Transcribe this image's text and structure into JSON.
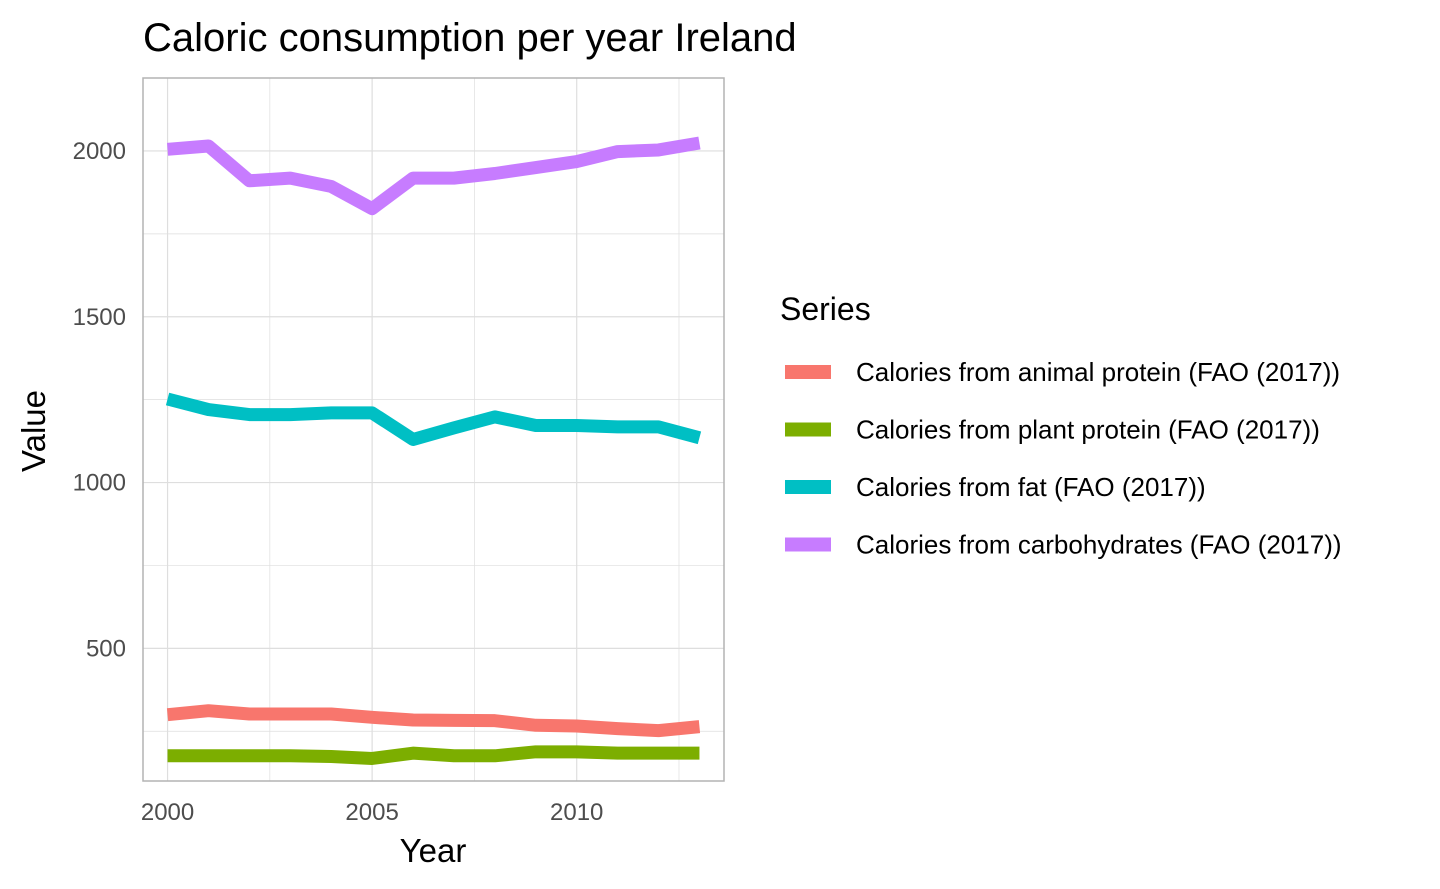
{
  "chart_data": {
    "type": "line",
    "title": "Caloric consumption per year Ireland",
    "xlabel": "Year",
    "ylabel": "Value",
    "xlim": [
      1999.4,
      2013.6
    ],
    "ylim": [
      100,
      2220
    ],
    "x_ticks": [
      2000,
      2005,
      2010
    ],
    "y_ticks": [
      500,
      1000,
      1500,
      2000
    ],
    "grid": true,
    "legend_title": "Series",
    "legend_position": "right",
    "x": [
      2000,
      2001,
      2002,
      2003,
      2004,
      2005,
      2006,
      2007,
      2008,
      2009,
      2010,
      2011,
      2012,
      2013
    ],
    "series": [
      {
        "name": "Calories from animal protein (FAO (2017))",
        "color": "#F8766D",
        "values": [
          300,
          312,
          302,
          302,
          302,
          292,
          284,
          283,
          282,
          268,
          266,
          258,
          252,
          264
        ]
      },
      {
        "name": "Calories from plant protein (FAO (2017))",
        "color": "#7CAE00",
        "values": [
          176,
          176,
          176,
          176,
          174,
          168,
          184,
          176,
          176,
          188,
          188,
          184,
          184,
          184
        ]
      },
      {
        "name": "Calories from fat (FAO (2017))",
        "color": "#00BFC4",
        "values": [
          1252,
          1220,
          1205,
          1205,
          1210,
          1210,
          1130,
          1165,
          1198,
          1172,
          1172,
          1168,
          1168,
          1135
        ]
      },
      {
        "name": "Calories from carbohydrates (FAO (2017))",
        "color": "#C77CFF",
        "values": [
          2005,
          2015,
          1910,
          1918,
          1893,
          1826,
          1918,
          1918,
          1932,
          1950,
          1968,
          1998,
          2003,
          2024
        ]
      }
    ]
  }
}
